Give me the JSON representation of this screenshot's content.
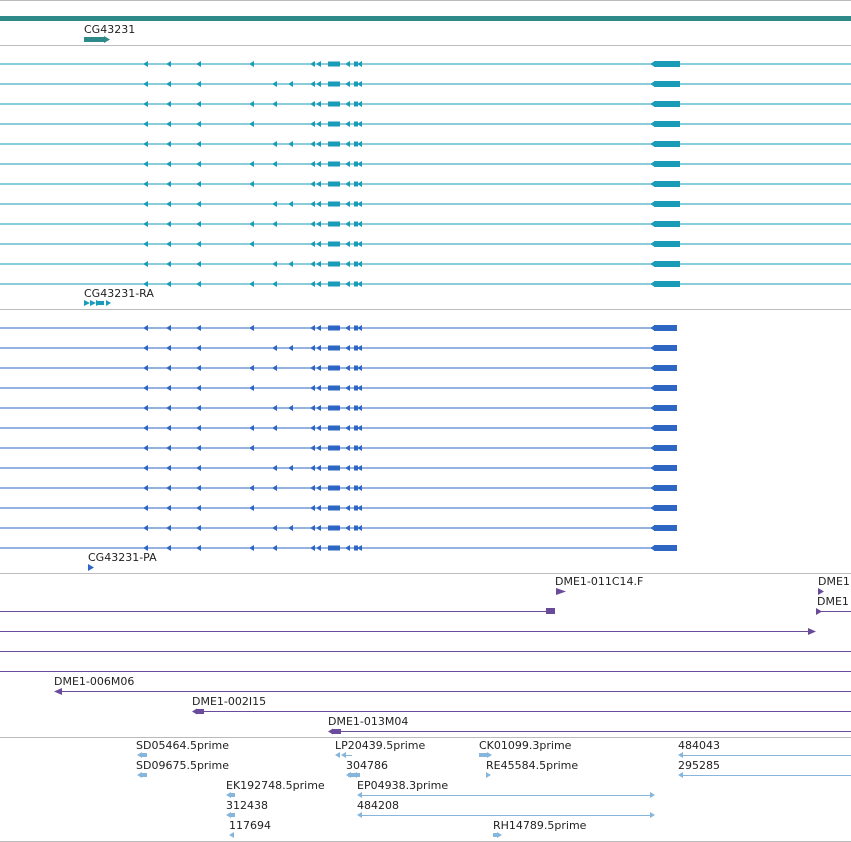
{
  "colors": {
    "gene": "#2d8a88",
    "transcript_ra": "#1a9bb8",
    "transcript_pa": "#2e66c4",
    "bac": "#6a4a9a",
    "est": "#86b6dc",
    "divider": "#bbbbbb"
  },
  "gene": {
    "label": "CG43231",
    "icon": "gene-arrow-icon"
  },
  "transcripts_ra": {
    "label": "CG43231-RA",
    "row_count": 12
  },
  "transcripts_pa": {
    "label": "CG43231-PA",
    "row_count": 12
  },
  "bac_labels": {
    "dme1_011c14": "DME1-011C14.F",
    "dme1_right_a": "DME1",
    "dme1_right_b": "DME1",
    "dme1_006m06": "DME1-006M06",
    "dme1_002i15": "DME1-002I15",
    "dme1_013m04": "DME1-013M04"
  },
  "est_labels": {
    "sd05464": "SD05464.5prime",
    "lp20439": "LP20439.5prime",
    "ck01099": "CK01099.3prime",
    "e484043": "484043",
    "sd09675": "SD09675.5prime",
    "e304786": "304786",
    "re45584": "RE45584.5prime",
    "e295285": "295285",
    "ek192748": "EK192748.5prime",
    "ep04938": "EP04938.3prime",
    "e312438": "312438",
    "e484208": "484208",
    "e117694": "117694",
    "rh14789": "RH14789.5prime"
  }
}
